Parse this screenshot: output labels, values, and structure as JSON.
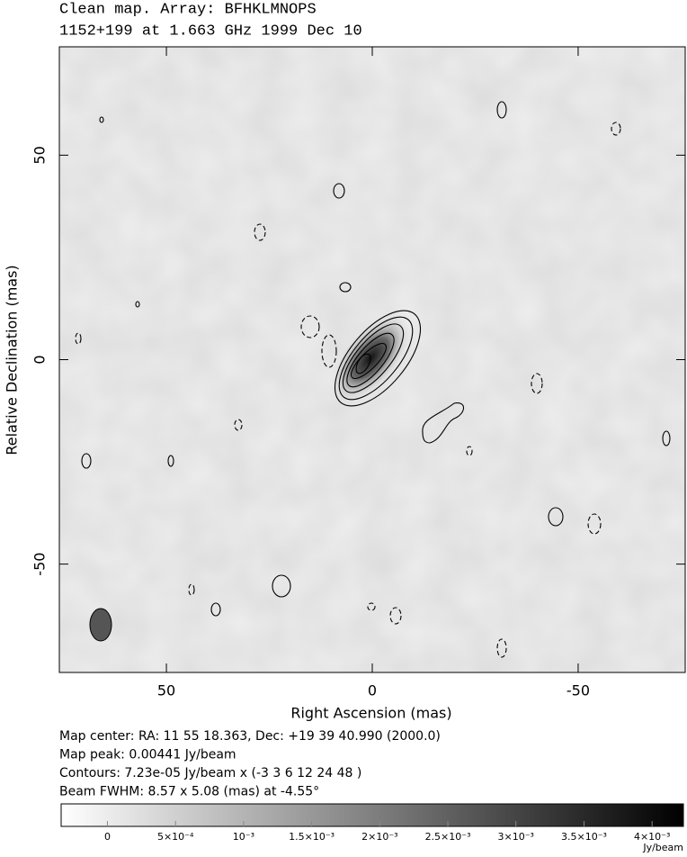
{
  "chart_data": {
    "type": "map",
    "title": "Clean map.  Array: BFHKLMNOPS",
    "subtitle": "1152+199 at 1.663 GHz 1999 Dec 10",
    "x_label": "Right Ascension  (mas)",
    "y_label": "Relative Declination  (mas)",
    "xlim": [
      76,
      -76
    ],
    "ylim": [
      -76.5,
      76.5
    ],
    "xticks": [
      50,
      0,
      -50
    ],
    "yticks": [
      50,
      0,
      -50
    ],
    "notes": [
      "Map center:  RA: 11 55 18.363,  Dec: +19 39 40.990 (2000.0)",
      "Map peak: 0.00441 Jy/beam",
      "Contours: 7.23e-05 Jy/beam x (-3 3 6 12 24 48 )",
      "Beam FWHM: 8.57 x 5.08 (mas) at -4.55°"
    ],
    "colorbar": {
      "lim": [
        -0.00034,
        0.00423
      ],
      "ticks": [
        0,
        {
          "value": 0.0005,
          "label": "5×10⁻⁴"
        },
        {
          "value": 0.001,
          "label": "10⁻³"
        },
        {
          "value": 0.0015,
          "label": "1.5×10⁻³"
        },
        {
          "value": 0.002,
          "label": "2×10⁻³"
        },
        {
          "value": 0.0025,
          "label": "2.5×10⁻³"
        },
        {
          "value": 0.003,
          "label": "3×10⁻³"
        },
        {
          "value": 0.0035,
          "label": "3.5×10⁻³"
        },
        {
          "value": 0.004,
          "label": "4×10⁻³"
        }
      ],
      "unit": "Jy/beam"
    }
  }
}
